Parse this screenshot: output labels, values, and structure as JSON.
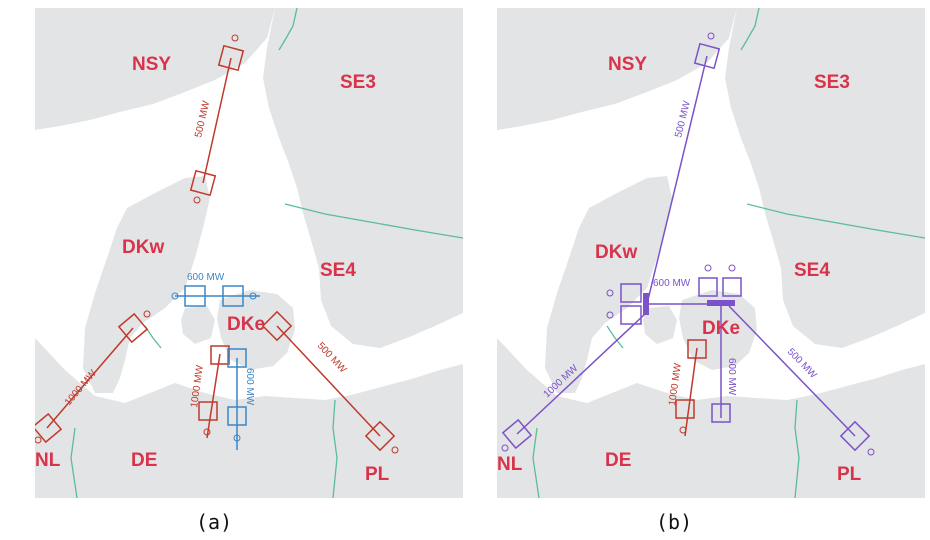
{
  "regions": {
    "nsy": "NSY",
    "se3": "SE3",
    "dkw": "DKw",
    "se4": "SE4",
    "dke": "DKe",
    "nl": "NL",
    "de": "DE",
    "pl": "PL"
  },
  "panel_a": {
    "caption": "(a)",
    "links": {
      "nsy_dkw": "500 MW",
      "dkw_dke": "600 MW",
      "dkw_nl": "1000 MW",
      "dke_pl": "500 MW",
      "dke_de_red": "1000 MW",
      "dke_de_blue": "600 MW"
    }
  },
  "panel_b": {
    "caption": "(b)",
    "links": {
      "nsy": "500 MW",
      "dkw": "600 MW",
      "nl": "1000 MW",
      "pl": "500 MW",
      "de_red": "1000 MW",
      "de_purple": "600 MW"
    }
  },
  "colors": {
    "water": "#ffffff",
    "land": "#e3e4e5",
    "land_dark": "#d9dadc",
    "border": "#5bbd98",
    "label": "#d9334b",
    "red_link": "#c0392b",
    "blue_link": "#3a86c8",
    "purple_link": "#7b52c9"
  }
}
